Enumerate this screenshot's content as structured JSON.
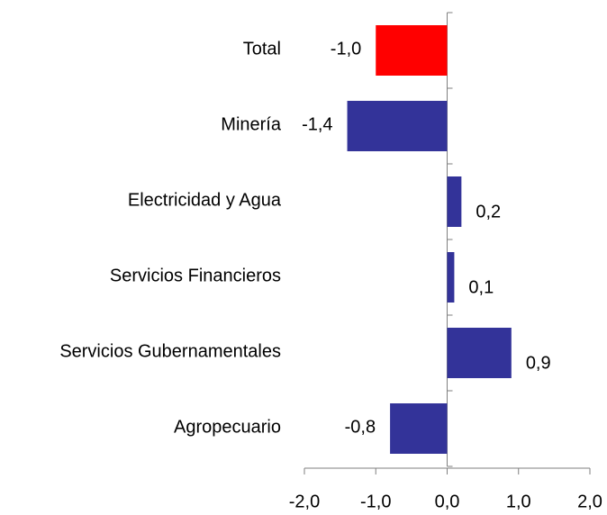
{
  "chart_data": {
    "type": "hbar",
    "categories": [
      "Total",
      "Minería",
      "Electricidad y Agua",
      "Servicios Financieros",
      "Servicios Gubernamentales",
      "Agropecuario"
    ],
    "values": [
      -1.0,
      -1.4,
      0.2,
      0.1,
      0.9,
      -0.8
    ],
    "value_labels": [
      "-1,0",
      "-1,4",
      "0,2",
      "0,1",
      "0,9",
      "-0,8"
    ],
    "colors": [
      "#ff0000",
      "#333399",
      "#333399",
      "#333399",
      "#333399",
      "#333399"
    ],
    "xlim": [
      -2,
      2
    ],
    "xticks": [
      {
        "value": -2,
        "label": "-2,0"
      },
      {
        "value": -1,
        "label": "-1,0"
      },
      {
        "value": 0,
        "label": "0,0"
      },
      {
        "value": 1,
        "label": "1,0"
      },
      {
        "value": 2,
        "label": "2,0"
      }
    ]
  }
}
